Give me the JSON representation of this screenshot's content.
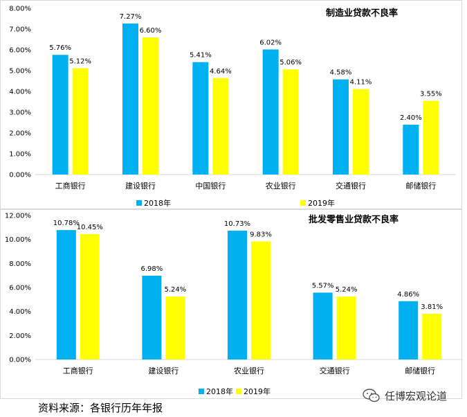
{
  "colors": {
    "s2018": "#00B0F0",
    "s2019": "#FFFF00",
    "axis": "#d9d9d9",
    "text": "#000000"
  },
  "chart_data": [
    {
      "type": "bar",
      "title": "制造业贷款不良率",
      "categories": [
        "工商银行",
        "建设银行",
        "中国银行",
        "农业银行",
        "交通银行",
        "邮储银行"
      ],
      "series": [
        {
          "name": "2018年",
          "values": [
            5.76,
            7.27,
            5.41,
            6.02,
            4.58,
            2.4
          ],
          "labels": [
            "5.76%",
            "7.27%",
            "5.41%",
            "6.02%",
            "4.58%",
            "2.40%"
          ]
        },
        {
          "name": "2019年",
          "values": [
            5.12,
            6.6,
            4.64,
            5.06,
            4.11,
            3.55
          ],
          "labels": [
            "5.12%",
            "6.60%",
            "4.64%",
            "5.06%",
            "4.11%",
            "3.55%"
          ]
        }
      ],
      "ylim": [
        0,
        8
      ],
      "yticks": [
        "0.00%",
        "1.00%",
        "2.00%",
        "3.00%",
        "4.00%",
        "5.00%",
        "6.00%",
        "7.00%",
        "8.00%"
      ],
      "xlabel": "",
      "ylabel": "",
      "legend": "bottom",
      "grid": false
    },
    {
      "type": "bar",
      "title": "批发零售业贷款不良率",
      "categories": [
        "工商银行",
        "建设银行",
        "农业银行",
        "交通银行",
        "邮储银行"
      ],
      "series": [
        {
          "name": "2018年",
          "values": [
            10.78,
            6.98,
            10.73,
            5.57,
            4.86
          ],
          "labels": [
            "10.78%",
            "6.98%",
            "10.73%",
            "5.57%",
            "4.86%"
          ]
        },
        {
          "name": "2019年",
          "values": [
            10.45,
            5.24,
            9.83,
            5.24,
            3.81
          ],
          "labels": [
            "10.45%",
            "5.24%",
            "9.83%",
            "5.24%",
            "3.81%"
          ]
        }
      ],
      "ylim": [
        0,
        12
      ],
      "yticks": [
        "0.00%",
        "2.00%",
        "4.00%",
        "6.00%",
        "8.00%",
        "10.00%",
        "12.00%"
      ],
      "xlabel": "",
      "ylabel": "",
      "legend": "bottom",
      "grid": false
    }
  ],
  "footer": {
    "source": "资料来源：各银行历年年报",
    "watermark": "任博宏观论道"
  }
}
